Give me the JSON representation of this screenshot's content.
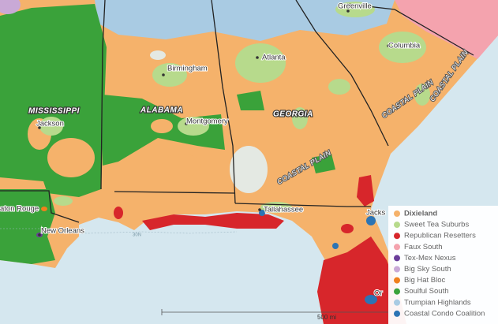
{
  "map": {
    "states": [
      "MISSISSIPPI",
      "ALABAMA",
      "GEORGIA"
    ],
    "regions": [
      "COASTAL PLAIN",
      "COASTAL PLAIN",
      "COASTAL PLAIN"
    ],
    "cities": [
      "Greenville",
      "Columbia",
      "Atlanta",
      "Birmingham",
      "Jackson",
      "Montgomery",
      "Tallahassee",
      "aton Rouge",
      "New Orleans",
      "Jacks",
      "Or"
    ],
    "graticule": "30N",
    "scale": "500 mi"
  },
  "legend": {
    "items": [
      {
        "name": "Dixieland",
        "color": "#f5b26b"
      },
      {
        "name": "Sweet Tea Suburbs",
        "color": "#b7da8c"
      },
      {
        "name": "Republican Resetters",
        "color": "#d7262b"
      },
      {
        "name": "Faux South",
        "color": "#f4a3ae"
      },
      {
        "name": "Tex-Mex Nexus",
        "color": "#6a3d9a"
      },
      {
        "name": "Big Sky South",
        "color": "#c9a9d6"
      },
      {
        "name": "Big Hat Bloc",
        "color": "#f07f1c"
      },
      {
        "name": "Soulful South",
        "color": "#3aa23a"
      },
      {
        "name": "Trumpian Highlands",
        "color": "#a9cbe3"
      },
      {
        "name": "Coastal Condo Coalition",
        "color": "#2c74b4"
      }
    ]
  }
}
